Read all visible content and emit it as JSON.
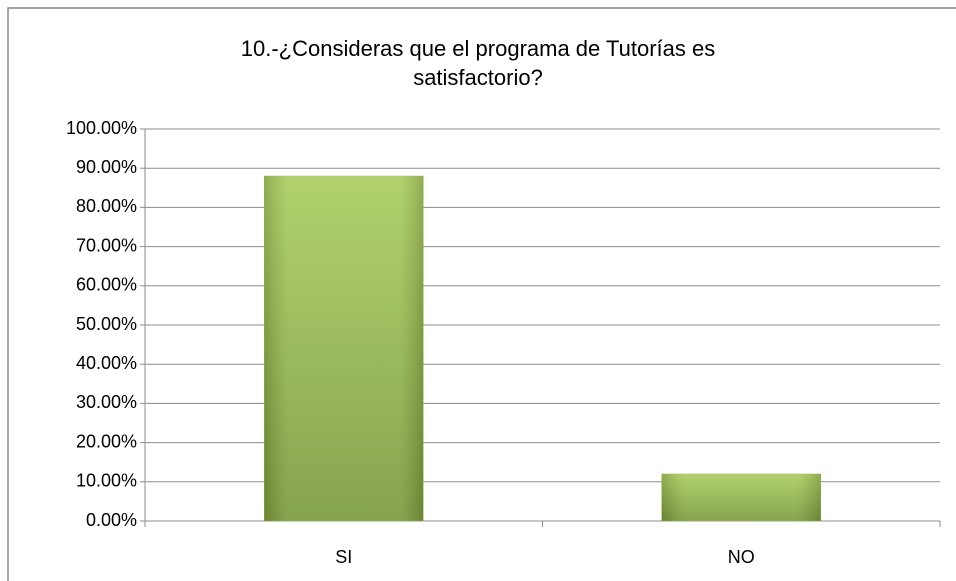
{
  "chart_data": {
    "type": "bar",
    "title": [
      "10.-¿Consideras que el programa de Tutorías es",
      "satisfactorio?"
    ],
    "categories": [
      "SI",
      "NO"
    ],
    "values": [
      88,
      12
    ],
    "color": "#9bbb59",
    "ylim": [
      0,
      100
    ],
    "yticks": [
      {
        "value": 0,
        "label": "0.00%"
      },
      {
        "value": 10,
        "label": "10.00%"
      },
      {
        "value": 20,
        "label": "20.00%"
      },
      {
        "value": 30,
        "label": "30.00%"
      },
      {
        "value": 40,
        "label": "40.00%"
      },
      {
        "value": 50,
        "label": "50.00%"
      },
      {
        "value": 60,
        "label": "60.00%"
      },
      {
        "value": 70,
        "label": "70.00%"
      },
      {
        "value": 80,
        "label": "80.00%"
      },
      {
        "value": 90,
        "label": "90.00%"
      },
      {
        "value": 100,
        "label": "100.00%"
      }
    ],
    "grid": true
  }
}
